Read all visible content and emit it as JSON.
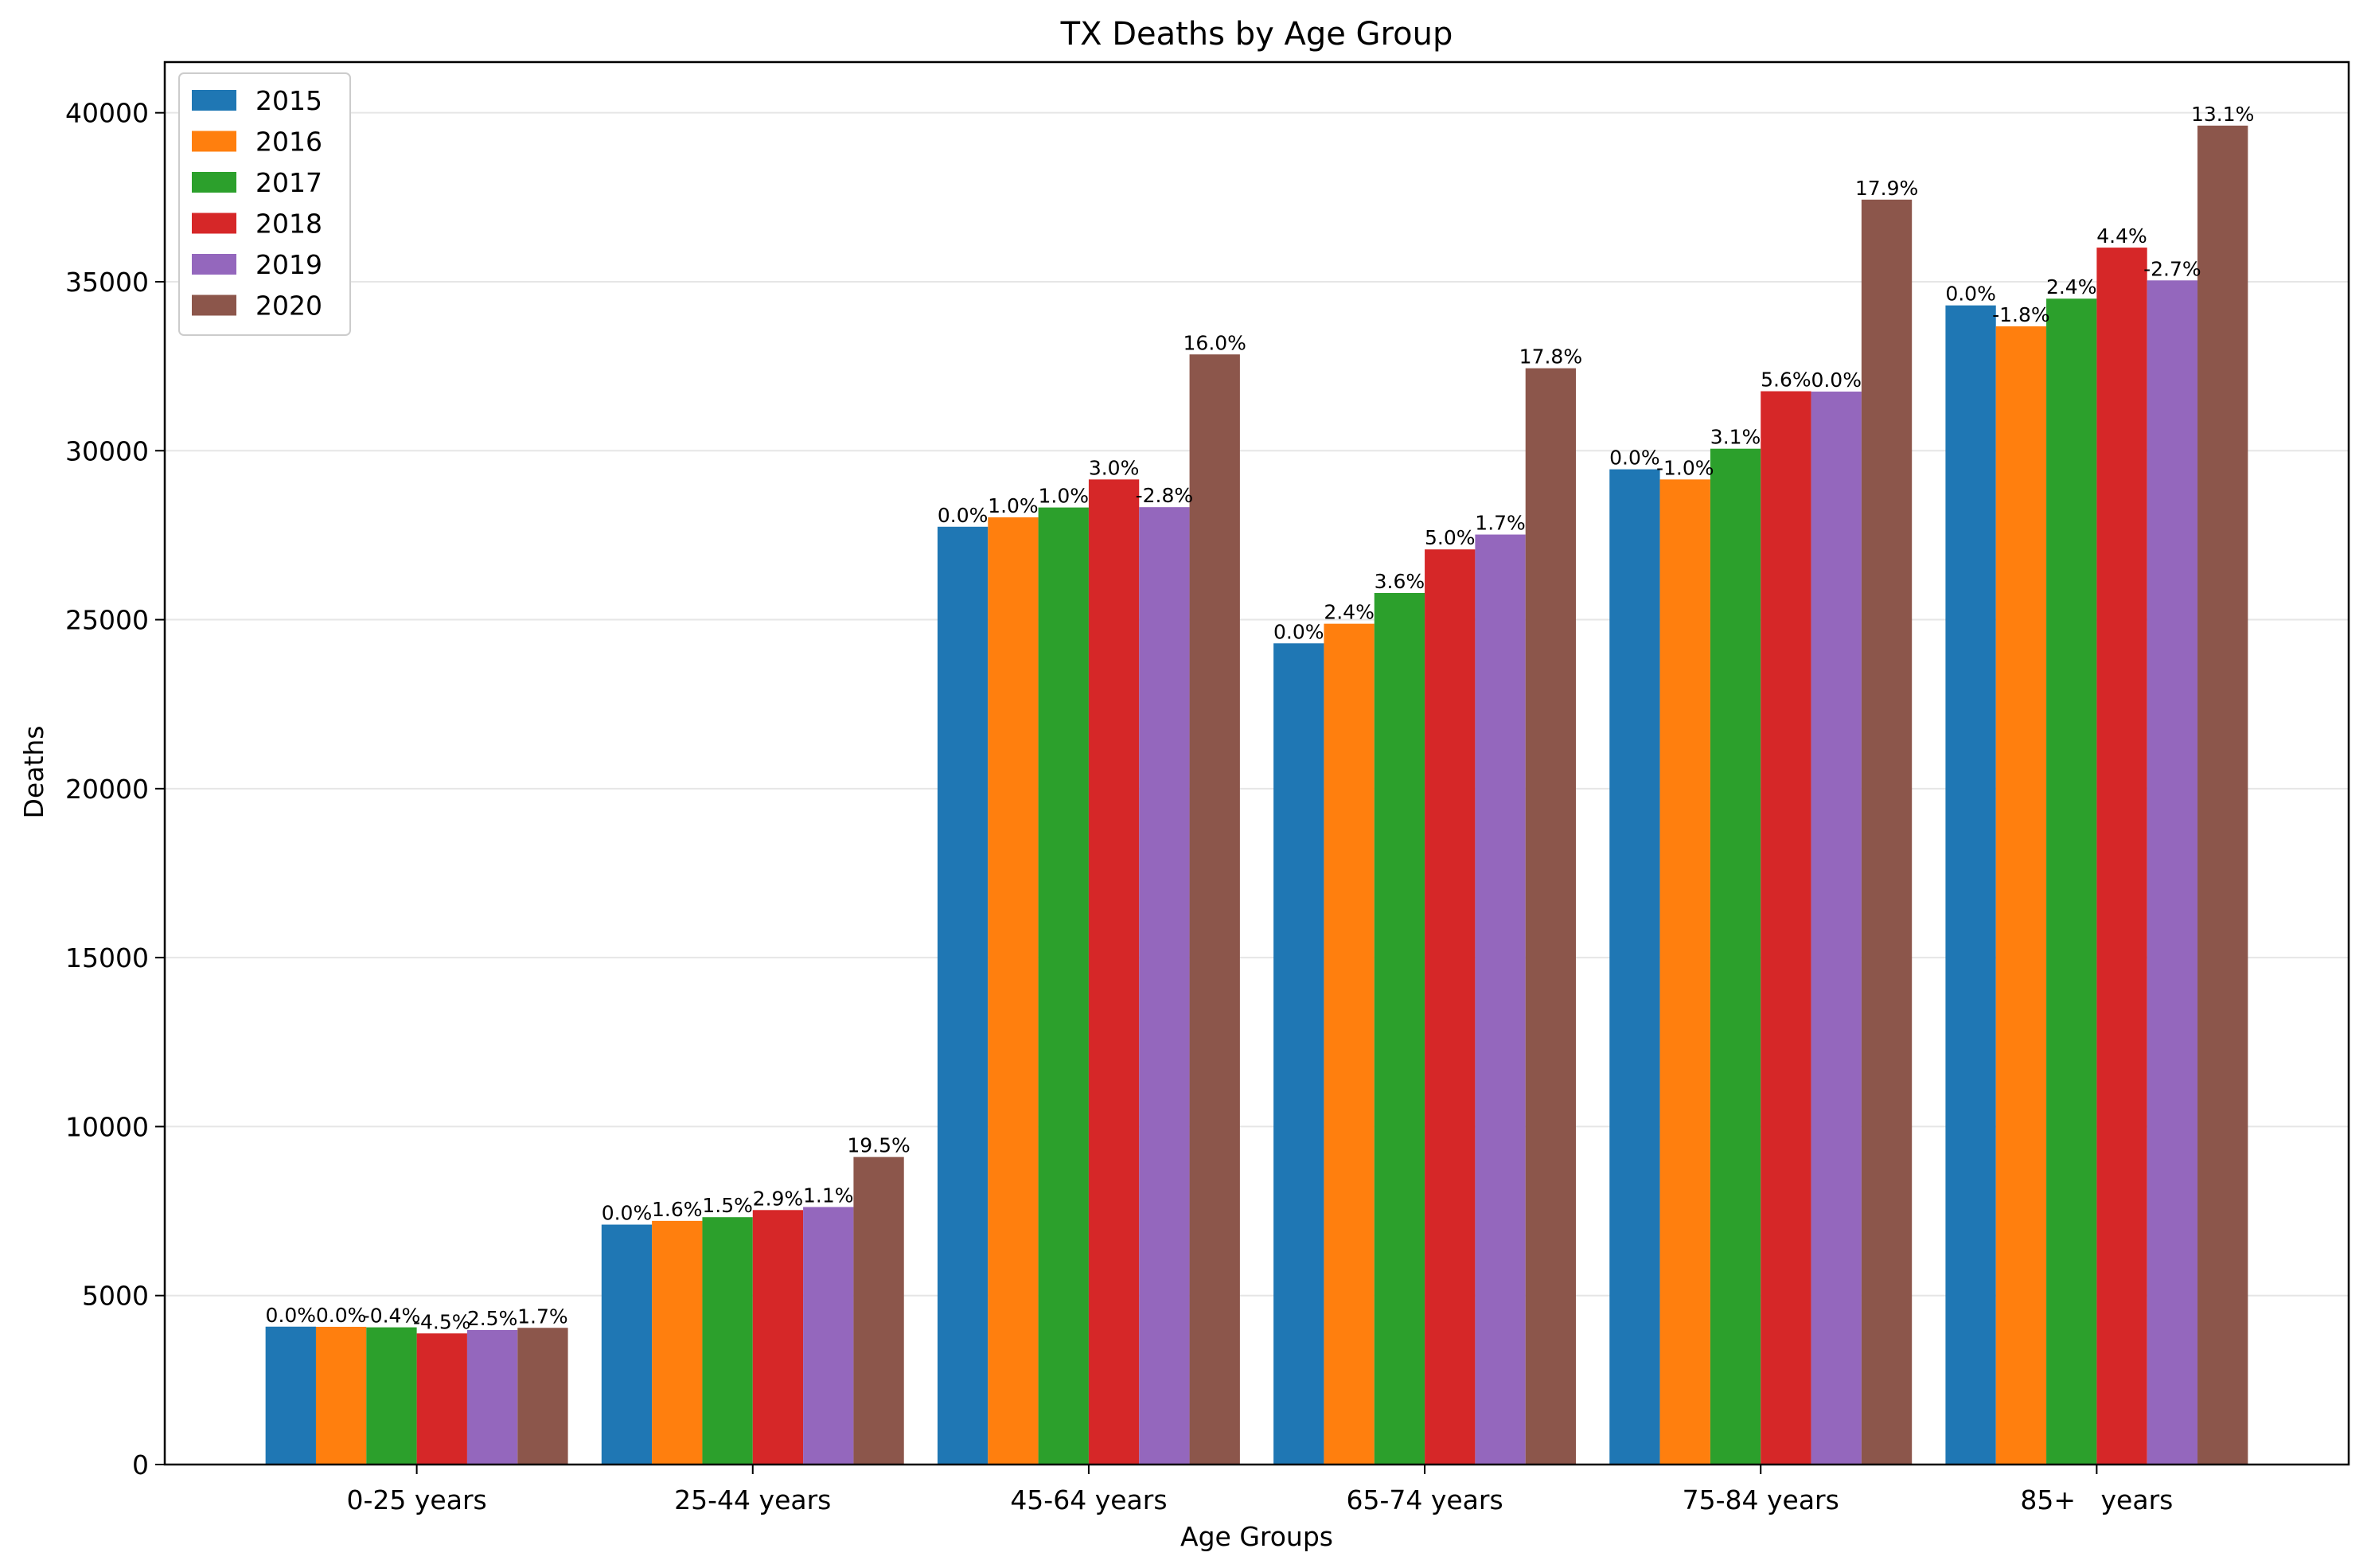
{
  "chart_data": {
    "type": "bar",
    "title": "TX Deaths by Age Group",
    "xlabel": "Age Groups",
    "ylabel": "Deaths",
    "ylim": [
      0,
      41500
    ],
    "yticks": [
      0,
      5000,
      10000,
      15000,
      20000,
      25000,
      30000,
      35000,
      40000
    ],
    "grid": "y",
    "legend_position": "top-left",
    "categories": [
      "0-25 years",
      "25-44 years",
      "45-64 years",
      "65-74 years",
      "75-84 years",
      "85+   years"
    ],
    "series": [
      {
        "name": "2015",
        "color": "#1f77b4",
        "values": [
          4080,
          7100,
          27750,
          24300,
          29450,
          34300
        ],
        "labels": [
          "0.0%",
          "0.0%",
          "0.0%",
          "0.0%",
          "0.0%",
          "0.0%"
        ]
      },
      {
        "name": "2016",
        "color": "#ff7f0e",
        "values": [
          4075,
          7210,
          28030,
          24880,
          29150,
          33680
        ],
        "labels": [
          "0.0%",
          "1.6%",
          "1.0%",
          "2.4%",
          "-1.0%",
          "-1.8%"
        ]
      },
      {
        "name": "2017",
        "color": "#2ca02c",
        "values": [
          4060,
          7320,
          28320,
          25790,
          30060,
          34500
        ],
        "labels": [
          "-0.4%",
          "1.5%",
          "1.0%",
          "3.6%",
          "3.1%",
          "2.4%"
        ]
      },
      {
        "name": "2018",
        "color": "#d62728",
        "values": [
          3880,
          7530,
          29150,
          27080,
          31760,
          36010
        ],
        "labels": [
          "-4.5%",
          "2.9%",
          "3.0%",
          "5.0%",
          "5.6%",
          "4.4%"
        ]
      },
      {
        "name": "2019",
        "color": "#9467bd",
        "values": [
          3980,
          7620,
          28330,
          27520,
          31750,
          35040
        ],
        "labels": [
          "2.5%",
          "1.1%",
          "-2.8%",
          "1.7%",
          "0.0%",
          "-2.7%"
        ]
      },
      {
        "name": "2020",
        "color": "#8c564b",
        "values": [
          4045,
          9100,
          32850,
          32440,
          37430,
          39620
        ],
        "labels": [
          "1.7%",
          "19.5%",
          "16.0%",
          "17.8%",
          "17.9%",
          "13.1%"
        ]
      }
    ]
  }
}
